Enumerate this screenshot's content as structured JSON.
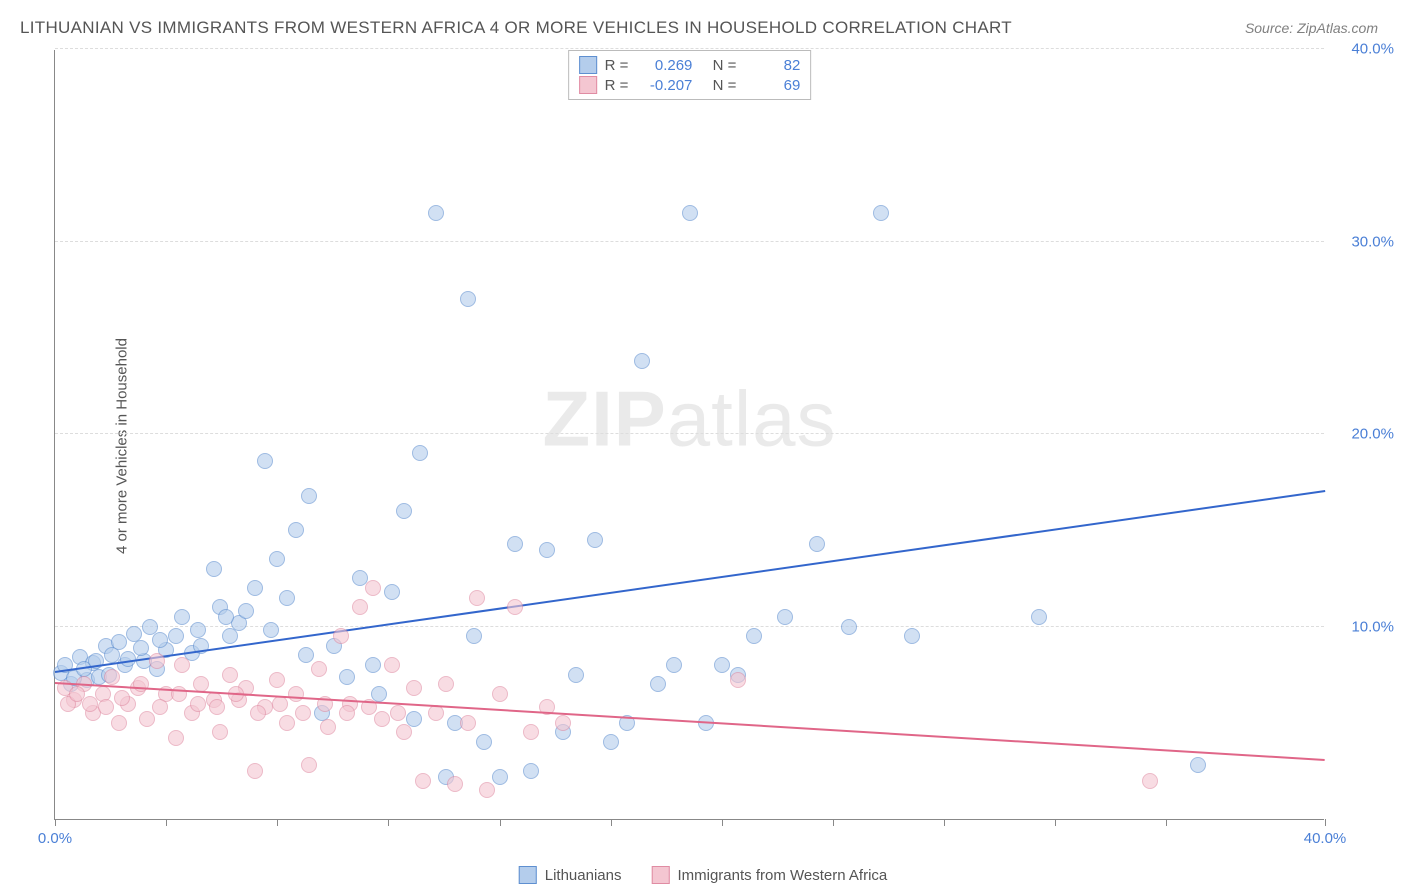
{
  "title": "LITHUANIAN VS IMMIGRANTS FROM WESTERN AFRICA 4 OR MORE VEHICLES IN HOUSEHOLD CORRELATION CHART",
  "source": "Source: ZipAtlas.com",
  "y_axis_label": "4 or more Vehicles in Household",
  "watermark_bold": "ZIP",
  "watermark_light": "atlas",
  "chart": {
    "type": "scatter",
    "xlim": [
      0,
      40
    ],
    "ylim": [
      0,
      40
    ],
    "x_ticks": [
      0,
      40
    ],
    "x_tick_labels": [
      "0.0%",
      "40.0%"
    ],
    "x_tick_marks": [
      0,
      3.5,
      7,
      10.5,
      14,
      17.5,
      21,
      24.5,
      28,
      31.5,
      35,
      40
    ],
    "y_ticks": [
      10,
      20,
      30,
      40
    ],
    "y_tick_labels": [
      "10.0%",
      "20.0%",
      "30.0%",
      "40.0%"
    ],
    "background_color": "#ffffff",
    "grid_color": "#dddddd",
    "plot_border_color": "#888888",
    "tick_label_color": "#4a7fd6",
    "axis_label_color": "#555555",
    "title_color": "#555555",
    "title_fontsize": 17,
    "tick_fontsize": 15,
    "label_fontsize": 15,
    "marker_radius": 8,
    "marker_opacity": 0.6
  },
  "series": [
    {
      "name": "Lithuanians",
      "fill_color": "#b4cdec",
      "stroke_color": "#5e8fd0",
      "trend_color": "#3366cc",
      "R_label": "R =",
      "R": "0.269",
      "N_label": "N =",
      "N": "82",
      "trend": {
        "x1": 0,
        "y1": 7.6,
        "x2": 40,
        "y2": 17.0
      },
      "points": [
        [
          0.2,
          7.6
        ],
        [
          0.5,
          7.0
        ],
        [
          0.8,
          8.4
        ],
        [
          1.0,
          7.2
        ],
        [
          1.2,
          8.1
        ],
        [
          1.4,
          7.4
        ],
        [
          1.6,
          9.0
        ],
        [
          1.8,
          8.5
        ],
        [
          2.0,
          9.2
        ],
        [
          2.2,
          8.0
        ],
        [
          2.5,
          9.6
        ],
        [
          2.8,
          8.2
        ],
        [
          3.0,
          10.0
        ],
        [
          3.2,
          7.8
        ],
        [
          3.5,
          8.8
        ],
        [
          3.8,
          9.5
        ],
        [
          4.0,
          10.5
        ],
        [
          4.3,
          8.6
        ],
        [
          4.6,
          9.0
        ],
        [
          5.0,
          13.0
        ],
        [
          5.2,
          11.0
        ],
        [
          5.5,
          9.5
        ],
        [
          5.8,
          10.2
        ],
        [
          6.0,
          10.8
        ],
        [
          6.3,
          12.0
        ],
        [
          6.6,
          18.6
        ],
        [
          7.0,
          13.5
        ],
        [
          7.3,
          11.5
        ],
        [
          7.6,
          15.0
        ],
        [
          8.0,
          16.8
        ],
        [
          8.4,
          5.5
        ],
        [
          8.8,
          9.0
        ],
        [
          9.2,
          7.4
        ],
        [
          9.6,
          12.5
        ],
        [
          10.0,
          8.0
        ],
        [
          10.2,
          6.5
        ],
        [
          10.6,
          11.8
        ],
        [
          11.0,
          16.0
        ],
        [
          11.3,
          5.2
        ],
        [
          11.5,
          19.0
        ],
        [
          12.0,
          31.5
        ],
        [
          12.3,
          2.2
        ],
        [
          12.6,
          5.0
        ],
        [
          13.0,
          27.0
        ],
        [
          13.2,
          9.5
        ],
        [
          13.5,
          4.0
        ],
        [
          14.0,
          2.2
        ],
        [
          14.5,
          14.3
        ],
        [
          15.0,
          2.5
        ],
        [
          15.5,
          14.0
        ],
        [
          16.0,
          4.5
        ],
        [
          16.4,
          7.5
        ],
        [
          17.0,
          14.5
        ],
        [
          17.5,
          4.0
        ],
        [
          18.0,
          5.0
        ],
        [
          18.5,
          23.8
        ],
        [
          19.0,
          7.0
        ],
        [
          19.5,
          8.0
        ],
        [
          20.0,
          31.5
        ],
        [
          20.5,
          5.0
        ],
        [
          21.0,
          8.0
        ],
        [
          21.5,
          7.5
        ],
        [
          22.0,
          9.5
        ],
        [
          23.0,
          10.5
        ],
        [
          24.0,
          14.3
        ],
        [
          25.0,
          10.0
        ],
        [
          26.0,
          31.5
        ],
        [
          27.0,
          9.5
        ],
        [
          31.0,
          10.5
        ],
        [
          36.0,
          2.8
        ],
        [
          0.3,
          8.0
        ],
        [
          0.6,
          7.3
        ],
        [
          0.9,
          7.8
        ],
        [
          1.3,
          8.2
        ],
        [
          1.7,
          7.5
        ],
        [
          2.3,
          8.3
        ],
        [
          2.7,
          8.9
        ],
        [
          3.3,
          9.3
        ],
        [
          4.5,
          9.8
        ],
        [
          5.4,
          10.5
        ],
        [
          6.8,
          9.8
        ],
        [
          7.9,
          8.5
        ]
      ]
    },
    {
      "name": "Immigrants from Western Africa",
      "fill_color": "#f4c6d1",
      "stroke_color": "#e08ca3",
      "trend_color": "#e06688",
      "R_label": "R =",
      "R": "-0.207",
      "N_label": "N =",
      "N": "69",
      "trend": {
        "x1": 0,
        "y1": 7.0,
        "x2": 40,
        "y2": 3.0
      },
      "points": [
        [
          0.3,
          6.8
        ],
        [
          0.6,
          6.2
        ],
        [
          0.9,
          7.0
        ],
        [
          1.2,
          5.5
        ],
        [
          1.5,
          6.5
        ],
        [
          1.8,
          7.4
        ],
        [
          2.0,
          5.0
        ],
        [
          2.3,
          6.0
        ],
        [
          2.6,
          6.8
        ],
        [
          2.9,
          5.2
        ],
        [
          3.2,
          8.2
        ],
        [
          3.5,
          6.5
        ],
        [
          3.8,
          4.2
        ],
        [
          4.0,
          8.0
        ],
        [
          4.3,
          5.5
        ],
        [
          4.6,
          7.0
        ],
        [
          5.0,
          6.2
        ],
        [
          5.2,
          4.5
        ],
        [
          5.5,
          7.5
        ],
        [
          5.8,
          6.2
        ],
        [
          6.0,
          6.8
        ],
        [
          6.3,
          2.5
        ],
        [
          6.6,
          5.8
        ],
        [
          7.0,
          7.2
        ],
        [
          7.3,
          5.0
        ],
        [
          7.6,
          6.5
        ],
        [
          8.0,
          2.8
        ],
        [
          8.3,
          7.8
        ],
        [
          8.6,
          4.8
        ],
        [
          9.0,
          9.5
        ],
        [
          9.3,
          6.0
        ],
        [
          9.6,
          11.0
        ],
        [
          10.0,
          12.0
        ],
        [
          10.3,
          5.2
        ],
        [
          10.6,
          8.0
        ],
        [
          11.0,
          4.5
        ],
        [
          11.3,
          6.8
        ],
        [
          11.6,
          2.0
        ],
        [
          12.0,
          5.5
        ],
        [
          12.3,
          7.0
        ],
        [
          12.6,
          1.8
        ],
        [
          13.0,
          5.0
        ],
        [
          13.3,
          11.5
        ],
        [
          13.6,
          1.5
        ],
        [
          14.0,
          6.5
        ],
        [
          14.5,
          11.0
        ],
        [
          15.0,
          4.5
        ],
        [
          15.5,
          5.8
        ],
        [
          16.0,
          5.0
        ],
        [
          21.5,
          7.2
        ],
        [
          34.5,
          2.0
        ],
        [
          0.4,
          6.0
        ],
        [
          0.7,
          6.5
        ],
        [
          1.1,
          6.0
        ],
        [
          1.6,
          5.8
        ],
        [
          2.1,
          6.3
        ],
        [
          2.7,
          7.0
        ],
        [
          3.3,
          5.8
        ],
        [
          3.9,
          6.5
        ],
        [
          4.5,
          6.0
        ],
        [
          5.1,
          5.8
        ],
        [
          5.7,
          6.5
        ],
        [
          6.4,
          5.5
        ],
        [
          7.1,
          6.0
        ],
        [
          7.8,
          5.5
        ],
        [
          8.5,
          6.0
        ],
        [
          9.2,
          5.5
        ],
        [
          9.9,
          5.8
        ],
        [
          10.8,
          5.5
        ]
      ]
    }
  ],
  "legend": {
    "items": [
      "Lithuanians",
      "Immigrants from Western Africa"
    ]
  }
}
